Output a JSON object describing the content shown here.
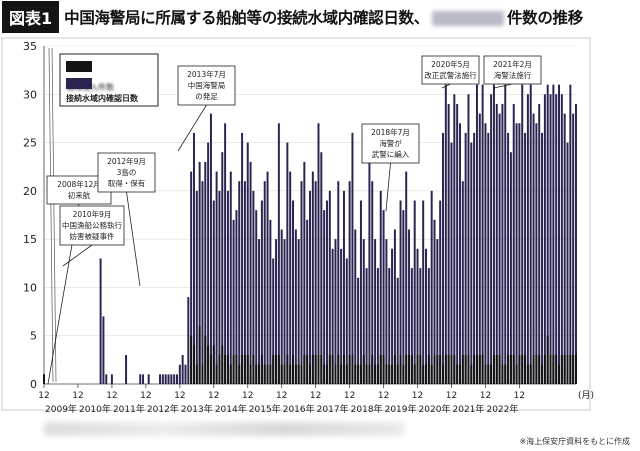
{
  "title": {
    "figure_label": "図表1",
    "text_before": "中国海警局に所属する船舶等の接続水域内確認日数、",
    "text_after": "件数の推移"
  },
  "legend": {
    "incursion_label": "領海侵入件数",
    "contiguous_label": "接続水域内確認日数"
  },
  "source_note": "※海上保安庁資料をもとに作成",
  "colors": {
    "bar": "#2a2550",
    "incursion": "#141414",
    "axis": "#444444",
    "grid": "#dddddd"
  },
  "chart_data": {
    "type": "bar",
    "title": "中国海警局に所属する船舶等の接続水域内確認日数、件数の推移",
    "xlabel": "",
    "ylabel": "",
    "ylim": [
      0,
      35
    ],
    "yticks": [
      0,
      5,
      10,
      15,
      20,
      25,
      30,
      35
    ],
    "x_tick_month": "12",
    "x_unit_label": "(月)",
    "year_labels": [
      "2009年",
      "2010年",
      "2011年",
      "2012年",
      "2013年",
      "2014年",
      "2015年",
      "2016年",
      "2017年",
      "2018年",
      "2019年",
      "2020年",
      "2021年",
      "2022年"
    ],
    "start": "2008-12",
    "end": "2022-12",
    "series": [
      {
        "name": "接続水域内確認日数",
        "values": [
          1,
          0,
          0,
          0,
          0,
          0,
          0,
          0,
          0,
          0,
          0,
          0,
          0,
          0,
          0,
          0,
          0,
          0,
          0,
          0,
          13,
          7,
          1,
          0,
          1,
          0,
          0,
          0,
          0,
          3,
          0,
          0,
          0,
          0,
          1,
          1,
          0,
          1,
          0,
          0,
          0,
          1,
          1,
          1,
          1,
          1,
          1,
          1,
          2,
          3,
          2,
          9,
          22,
          26,
          20,
          23,
          21,
          23,
          25,
          28,
          19,
          22,
          20,
          24,
          27,
          20,
          22,
          17,
          18,
          21,
          26,
          21,
          25,
          23,
          20,
          18,
          15,
          19,
          21,
          22,
          17,
          13,
          15,
          27,
          16,
          15,
          25,
          22,
          19,
          16,
          15,
          21,
          23,
          17,
          20,
          22,
          21,
          27,
          24,
          18,
          19,
          20,
          14,
          15,
          21,
          14,
          20,
          13,
          21,
          26,
          16,
          11,
          19,
          15,
          12,
          23,
          21,
          15,
          12,
          20,
          18,
          15,
          12,
          14,
          16,
          11,
          19,
          18,
          22,
          16,
          12,
          19,
          14,
          12,
          19,
          14,
          12,
          20,
          17,
          15,
          19,
          26,
          31,
          29,
          25,
          30,
          29,
          27,
          21,
          26,
          30,
          25,
          26,
          31,
          28,
          31,
          27,
          26,
          30,
          31,
          29,
          28,
          29,
          31,
          26,
          24,
          29,
          27,
          27,
          31,
          26,
          30,
          31,
          28,
          27,
          29,
          26,
          30,
          31,
          30,
          31,
          30,
          31,
          30,
          28,
          25,
          31,
          28,
          29
        ]
      },
      {
        "name": "領海侵入件数",
        "values": [
          1,
          0,
          0,
          0,
          0,
          0,
          0,
          0,
          0,
          0,
          0,
          0,
          0,
          0,
          0,
          0,
          0,
          0,
          0,
          0,
          0,
          0,
          0,
          0,
          0,
          0,
          0,
          0,
          0,
          0,
          0,
          0,
          0,
          0,
          0,
          0,
          0,
          0,
          0,
          0,
          0,
          0,
          0,
          0,
          0,
          0,
          0,
          0,
          0,
          0,
          0,
          0,
          5,
          4,
          2,
          6,
          2,
          5,
          4,
          3,
          4,
          2,
          3,
          4,
          3,
          3,
          2,
          3,
          3,
          2,
          3,
          3,
          3,
          2,
          3,
          2,
          2,
          3,
          2,
          2,
          2,
          3,
          3,
          3,
          2,
          2,
          3,
          2,
          3,
          2,
          2,
          2,
          3,
          3,
          2,
          3,
          3,
          3,
          3,
          2,
          2,
          3,
          3,
          2,
          3,
          2,
          3,
          2,
          3,
          3,
          2,
          2,
          2,
          3,
          2,
          2,
          3,
          2,
          2,
          3,
          3,
          2,
          2,
          2,
          3,
          2,
          3,
          2,
          3,
          3,
          3,
          2,
          3,
          3,
          2,
          2,
          3,
          2,
          3,
          3,
          3,
          2,
          3,
          3,
          3,
          3,
          2,
          2,
          3,
          3,
          3,
          2,
          3,
          3,
          3,
          3,
          2,
          2,
          2,
          3,
          3,
          3,
          2,
          2,
          3,
          3,
          3,
          2,
          3,
          3,
          3,
          2,
          2,
          3,
          3,
          3,
          2,
          3,
          5,
          3,
          3,
          3,
          2,
          3,
          3,
          3,
          3,
          3,
          3
        ]
      }
    ],
    "annotations": [
      {
        "lines": [
          "2008年12月",
          "初来航"
        ]
      },
      {
        "lines": [
          "2010年9月",
          "中国漁船公務執行",
          "妨害被疑事件"
        ]
      },
      {
        "lines": [
          "2012年9月",
          "3島の",
          "取得・保有"
        ]
      },
      {
        "lines": [
          "2013年7月",
          "中国海警局",
          "の発足"
        ]
      },
      {
        "lines": [
          "2018年7月",
          "海警が",
          "武警に編入"
        ]
      },
      {
        "lines": [
          "2020年5月",
          "改正武警法施行"
        ]
      },
      {
        "lines": [
          "2021年2月",
          "海警法施行"
        ]
      }
    ],
    "grid": true,
    "legend_position": "top-left"
  }
}
